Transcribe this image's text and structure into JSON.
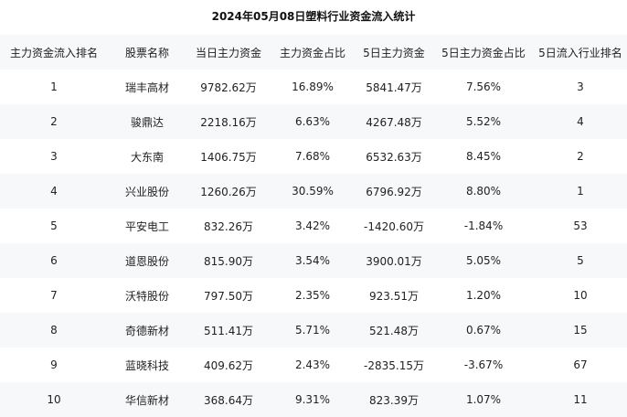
{
  "title": "2024年05月08日塑料行业资金流入统计",
  "columns": [
    "主力资金流入排名",
    "股票名称",
    "当日主力资金",
    "主力资金占比",
    "5日主力资金",
    "5日主力资金占比",
    "5日流入行业排名"
  ],
  "rows": [
    [
      "1",
      "瑞丰高材",
      "9782.62万",
      "16.89%",
      "5841.47万",
      "7.56%",
      "3"
    ],
    [
      "2",
      "骏鼎达",
      "2218.16万",
      "6.63%",
      "4267.48万",
      "5.52%",
      "4"
    ],
    [
      "3",
      "大东南",
      "1406.75万",
      "7.68%",
      "6532.63万",
      "8.45%",
      "2"
    ],
    [
      "4",
      "兴业股份",
      "1260.26万",
      "30.59%",
      "6796.92万",
      "8.80%",
      "1"
    ],
    [
      "5",
      "平安电工",
      "832.26万",
      "3.42%",
      "-1420.60万",
      "-1.84%",
      "53"
    ],
    [
      "6",
      "道恩股份",
      "815.90万",
      "3.54%",
      "3900.01万",
      "5.05%",
      "5"
    ],
    [
      "7",
      "沃特股份",
      "797.50万",
      "2.35%",
      "923.51万",
      "1.20%",
      "10"
    ],
    [
      "8",
      "奇德新材",
      "511.41万",
      "5.71%",
      "521.48万",
      "0.67%",
      "15"
    ],
    [
      "9",
      "蓝晓科技",
      "409.62万",
      "2.43%",
      "-2835.15万",
      "-3.67%",
      "67"
    ],
    [
      "10",
      "华信新材",
      "368.64万",
      "9.31%",
      "823.39万",
      "1.07%",
      "11"
    ]
  ]
}
